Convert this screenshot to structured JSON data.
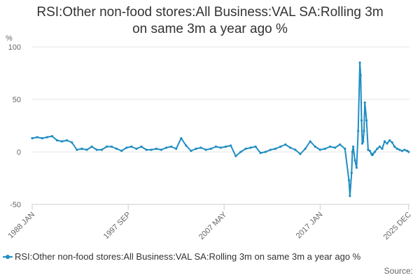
{
  "chart_data": {
    "type": "line",
    "title_lines": [
      "RSI:Other non-food stores:All Business:VAL SA:Rolling 3m",
      "on same 3m a year ago %"
    ],
    "ylabel": "%",
    "ylim": [
      -50,
      100
    ],
    "yticks": [
      100,
      50,
      0,
      -50
    ],
    "xlim": [
      1988.0,
      2026.0
    ],
    "xticks": [
      {
        "label": "1988 JAN",
        "value": 1988.0
      },
      {
        "label": "1997 SEP",
        "value": 1997.67
      },
      {
        "label": "2007 MAY",
        "value": 2007.33
      },
      {
        "label": "2017 JAN",
        "value": 2017.0
      },
      {
        "label": "2025 DEC",
        "value": 2025.92
      }
    ],
    "grid": true,
    "legend": "RSI:Other non-food stores:All Business:VAL SA:Rolling 3m on same 3m a year ago %",
    "source_label": "Source:",
    "color": "#1f8dc2",
    "series": [
      {
        "name": "RSI:Other non-food stores:All Business:VAL SA:Rolling 3m on same 3m a year ago %",
        "x": [
          1988.0,
          1988.5,
          1989.0,
          1989.5,
          1990.0,
          1990.5,
          1991.0,
          1991.5,
          1992.0,
          1992.5,
          1993.0,
          1993.5,
          1994.0,
          1994.5,
          1995.0,
          1995.5,
          1996.0,
          1996.5,
          1997.0,
          1997.5,
          1998.0,
          1998.5,
          1999.0,
          1999.5,
          2000.0,
          2000.5,
          2001.0,
          2001.5,
          2002.0,
          2002.5,
          2003.0,
          2003.5,
          2004.0,
          2004.5,
          2005.0,
          2005.5,
          2006.0,
          2006.5,
          2007.0,
          2007.5,
          2008.0,
          2008.5,
          2009.0,
          2009.5,
          2010.0,
          2010.5,
          2011.0,
          2011.5,
          2012.0,
          2012.5,
          2013.0,
          2013.5,
          2014.0,
          2014.5,
          2015.0,
          2015.5,
          2016.0,
          2016.5,
          2017.0,
          2017.5,
          2018.0,
          2018.5,
          2019.0,
          2019.5,
          2019.9,
          2020.0,
          2020.17,
          2020.25,
          2020.33,
          2020.5,
          2020.67,
          2020.83,
          2021.0,
          2021.08,
          2021.17,
          2021.25,
          2021.33,
          2021.42,
          2021.5,
          2021.67,
          2021.83,
          2022.0,
          2022.17,
          2022.25,
          2022.33,
          2022.5,
          2022.75,
          2023.0,
          2023.25,
          2023.5,
          2023.75,
          2024.0,
          2024.25,
          2024.5,
          2024.75,
          2025.0,
          2025.25,
          2025.5,
          2025.75,
          2025.92
        ],
        "y": [
          13,
          14,
          13,
          14,
          15,
          11,
          10,
          11,
          9,
          2,
          3,
          2,
          5,
          2,
          2,
          5,
          5,
          3,
          1,
          4,
          5,
          3,
          5,
          2,
          2,
          3,
          2,
          4,
          5,
          3,
          13,
          6,
          1,
          3,
          4,
          2,
          3,
          5,
          4,
          5,
          6,
          -4,
          0,
          3,
          4,
          5,
          -1,
          0,
          2,
          3,
          5,
          7,
          4,
          2,
          -2,
          3,
          10,
          5,
          2,
          3,
          5,
          4,
          7,
          3,
          -27,
          -42,
          -20,
          0,
          5,
          -8,
          -15,
          20,
          85,
          73,
          30,
          8,
          10,
          20,
          47,
          30,
          2,
          1,
          -2,
          -3,
          -2,
          0,
          3,
          5,
          3,
          10,
          8,
          11,
          9,
          5,
          3,
          2,
          1,
          2,
          1,
          0
        ]
      }
    ]
  }
}
